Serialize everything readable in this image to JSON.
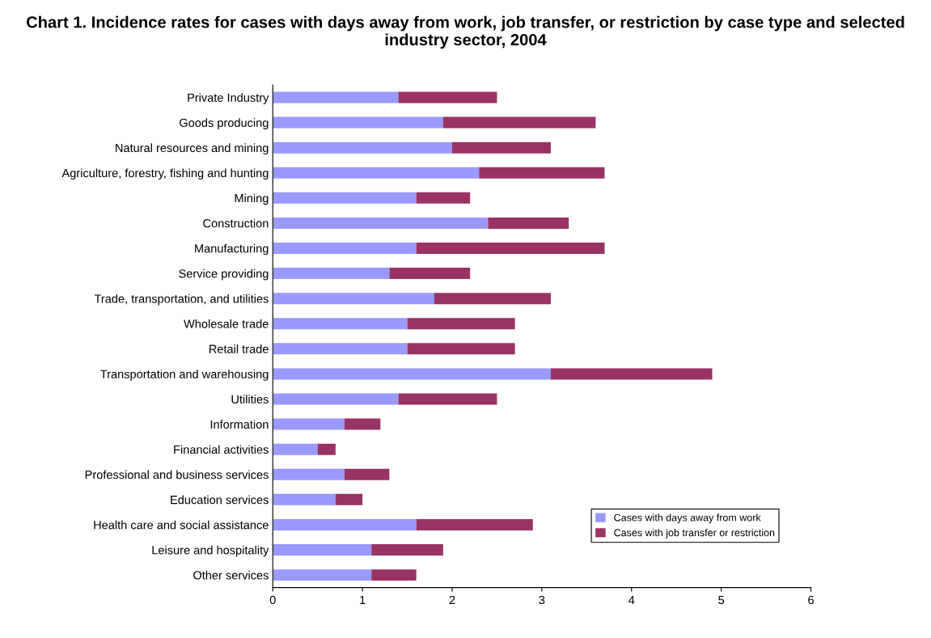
{
  "chart_data": {
    "type": "bar",
    "orientation": "horizontal",
    "stacked": true,
    "title": "Chart 1. Incidence rates for cases with days away from work, job transfer, or restriction by case type and selected industry sector, 2004",
    "categories": [
      "Private Industry",
      "Goods producing",
      "Natural resources and mining",
      "Agriculture, forestry, fishing and hunting",
      "Mining",
      "Construction",
      "Manufacturing",
      "Service providing",
      "Trade, transportation, and utilities",
      "Wholesale trade",
      "Retail trade",
      "Transportation and warehousing",
      "Utilities",
      "Information",
      "Financial activities",
      "Professional and business services",
      "Education services",
      "Health care and social assistance",
      "Leisure and hospitality",
      "Other services"
    ],
    "series": [
      {
        "name": "Cases with days away from work",
        "color": "#9999ff",
        "values": [
          1.4,
          1.9,
          2.0,
          2.3,
          1.6,
          2.4,
          1.6,
          1.3,
          1.8,
          1.5,
          1.5,
          3.1,
          1.4,
          0.8,
          0.5,
          0.8,
          0.7,
          1.6,
          1.1,
          1.1
        ]
      },
      {
        "name": "Cases with job transfer or restriction",
        "color": "#993366",
        "values": [
          1.1,
          1.7,
          1.1,
          1.4,
          0.6,
          0.9,
          2.1,
          0.9,
          1.3,
          1.2,
          1.2,
          1.8,
          1.1,
          0.4,
          0.2,
          0.5,
          0.3,
          1.3,
          0.8,
          0.5
        ]
      }
    ],
    "xlim": [
      0,
      6
    ],
    "xticks": [
      0,
      1,
      2,
      3,
      4,
      5,
      6
    ],
    "grid": false,
    "legend": "bottom right"
  }
}
